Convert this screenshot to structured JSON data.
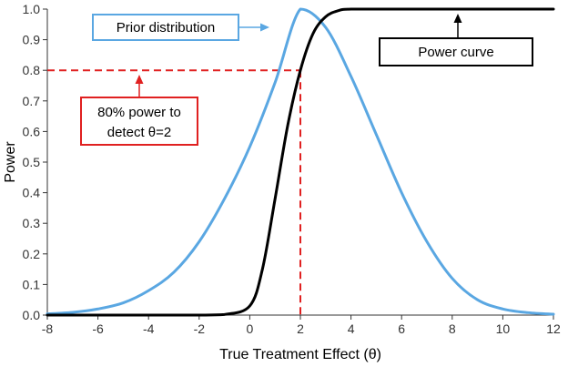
{
  "chart_data": {
    "type": "line",
    "xlabel": "True Treatment Effect (θ)",
    "ylabel": "Power",
    "xlim": [
      -8,
      12
    ],
    "ylim": [
      0,
      1
    ],
    "x_ticks": [
      "-8",
      "-6",
      "-4",
      "-2",
      "0",
      "2",
      "4",
      "6",
      "8",
      "10",
      "12"
    ],
    "y_ticks": [
      "0.0",
      "0.1",
      "0.2",
      "0.3",
      "0.4",
      "0.5",
      "0.6",
      "0.7",
      "0.8",
      "0.9",
      "1.0"
    ],
    "grid": false,
    "series": [
      {
        "name": "Power curve",
        "color": "#000000",
        "x": [
          -8,
          -6,
          -4,
          -2,
          -1,
          0,
          0.5,
          1,
          1.5,
          2,
          2.5,
          3,
          3.5,
          4,
          6,
          8,
          10,
          12
        ],
        "y": [
          0,
          0,
          0,
          0,
          0.002,
          0.03,
          0.15,
          0.38,
          0.62,
          0.8,
          0.92,
          0.975,
          0.995,
          1.0,
          1.0,
          1.0,
          1.0,
          1.0
        ]
      },
      {
        "name": "Prior distribution",
        "color": "#5aa7e2",
        "x": [
          -8,
          -7,
          -6,
          -5,
          -4,
          -3,
          -2,
          -1,
          0,
          1,
          2,
          3,
          4,
          5,
          6,
          7,
          8,
          9,
          10,
          11,
          12
        ],
        "y": [
          0.004,
          0.009,
          0.02,
          0.04,
          0.08,
          0.14,
          0.24,
          0.38,
          0.55,
          0.76,
          1.0,
          0.94,
          0.78,
          0.59,
          0.4,
          0.24,
          0.12,
          0.05,
          0.02,
          0.008,
          0.003
        ]
      }
    ],
    "reference": {
      "x": 2,
      "y": 0.8,
      "color": "#e02020"
    },
    "annotations": {
      "prior": "Prior distribution",
      "power": "Power curve",
      "threshold_line1": "80% power to",
      "threshold_line2": "detect θ=2"
    }
  }
}
